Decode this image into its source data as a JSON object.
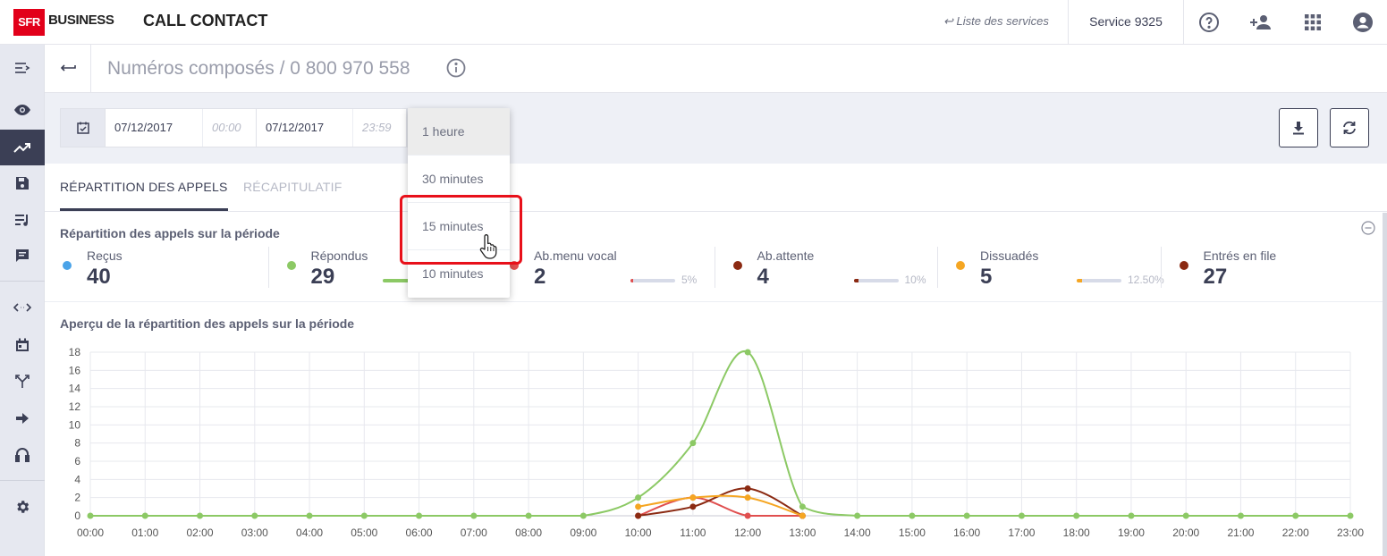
{
  "header": {
    "logo_sfr": "SFR",
    "logo_business": "BUSINESS",
    "app_title": "CALL CONTACT",
    "services_link": "↩ Liste des services",
    "service_name": "Service 9325",
    "icons": [
      "help-icon",
      "add-user-icon",
      "apps-grid-icon",
      "account-icon"
    ]
  },
  "sidebar": {
    "items": [
      "menu-collapse-icon",
      "eye-icon",
      "trending-up-icon",
      "save-icon",
      "playlist-icon",
      "message-icon",
      "code-arrows-icon",
      "calendar-icon",
      "merge-icon",
      "arrow-right-icon",
      "headset-icon",
      "gear-icon"
    ],
    "active": "trending-up-icon"
  },
  "title": {
    "text": "Numéros composés / 0 800 970 558"
  },
  "filters": {
    "start_date": "07/12/2017",
    "start_time": "00:00",
    "end_date": "07/12/2017",
    "end_time": "23:59"
  },
  "dropdown": {
    "options": [
      "1 heure",
      "30 minutes",
      "15 minutes",
      "10 minutes"
    ],
    "selected": "1 heure",
    "highlighted": "15 minutes"
  },
  "tabs": {
    "active": "RÉPARTITION DES APPELS",
    "inactive": "RÉCAPITULATIF"
  },
  "summary": {
    "title": "Répartition des appels sur la période",
    "stats": [
      {
        "label": "Reçus",
        "value": "40",
        "color": "#4aa3e8",
        "pct": "",
        "fraction": null
      },
      {
        "label": "Répondus",
        "value": "29",
        "color": "#8cc965",
        "pct": "",
        "fraction": 0.725
      },
      {
        "label": "Ab.menu vocal",
        "value": "2",
        "color": "#e04f4f",
        "pct": "5%",
        "fraction": 0.05
      },
      {
        "label": "Ab.attente",
        "value": "4",
        "color": "#8b2a12",
        "pct": "10%",
        "fraction": 0.1
      },
      {
        "label": "Dissuadés",
        "value": "5",
        "color": "#f5a623",
        "pct": "12.50%",
        "fraction": 0.125
      },
      {
        "label": "Entrés en file",
        "value": "27",
        "color": "#8b2a12",
        "pct": "",
        "fraction": null
      }
    ]
  },
  "chart_title": "Aperçu de la répartition des appels sur la période",
  "chart_data": {
    "type": "line",
    "x": [
      "00:00",
      "01:00",
      "02:00",
      "03:00",
      "04:00",
      "05:00",
      "06:00",
      "07:00",
      "08:00",
      "09:00",
      "10:00",
      "11:00",
      "12:00",
      "13:00",
      "14:00",
      "15:00",
      "16:00",
      "17:00",
      "18:00",
      "19:00",
      "20:00",
      "21:00",
      "22:00",
      "23:00"
    ],
    "y_ticks": [
      0,
      2,
      4,
      6,
      8,
      10,
      12,
      14,
      16,
      18
    ],
    "ylim": [
      0,
      18
    ],
    "grid": true,
    "series": [
      {
        "color": "#8cc965",
        "values": [
          0,
          0,
          0,
          0,
          0,
          0,
          0,
          0,
          0,
          0,
          2,
          8,
          18,
          1,
          0,
          0,
          0,
          0,
          0,
          0,
          0,
          0,
          0,
          0
        ]
      },
      {
        "color": "#f5a623",
        "values": [
          null,
          null,
          null,
          null,
          null,
          null,
          null,
          null,
          null,
          null,
          1,
          2,
          2,
          0,
          null,
          null,
          null,
          null,
          null,
          null,
          null,
          null,
          null,
          null
        ]
      },
      {
        "color": "#8b2a12",
        "values": [
          null,
          null,
          null,
          null,
          null,
          null,
          null,
          null,
          null,
          null,
          0,
          1,
          3,
          0,
          null,
          null,
          null,
          null,
          null,
          null,
          null,
          null,
          null,
          null
        ]
      },
      {
        "color": "#e04f4f",
        "values": [
          null,
          null,
          null,
          null,
          null,
          null,
          null,
          null,
          null,
          null,
          0,
          2,
          0,
          0,
          null,
          null,
          null,
          null,
          null,
          null,
          null,
          null,
          null,
          null
        ]
      }
    ]
  }
}
